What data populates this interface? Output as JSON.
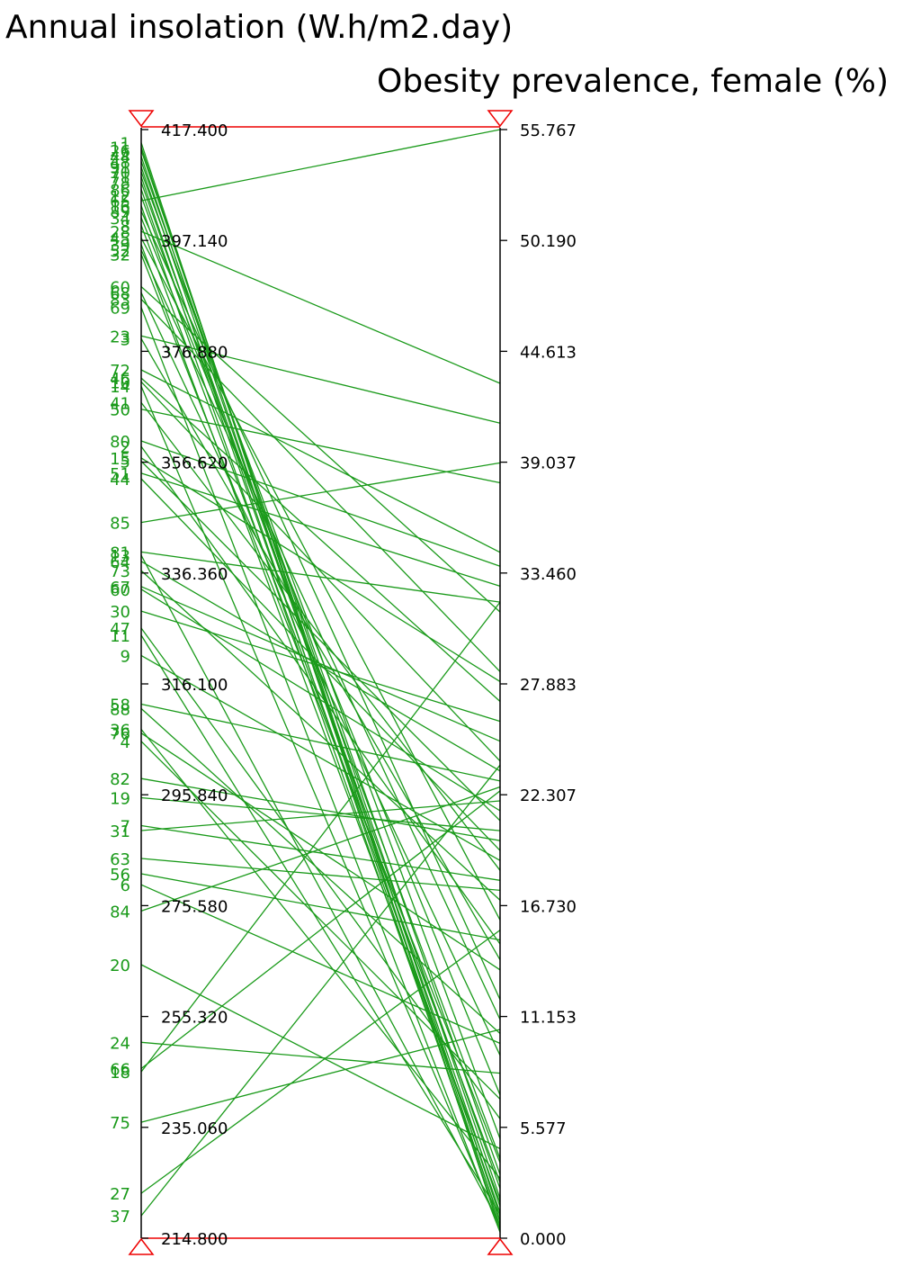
{
  "colors": {
    "line": "#1a9a1a",
    "axis": "#000000",
    "filter_bar": "#ee0000",
    "background": "#ffffff"
  },
  "chart_data": {
    "type": "parallel-coordinates",
    "grid": false,
    "axes": [
      {
        "title": "Annual insolation (W.h/m2.day)",
        "range": [
          214.8,
          417.4
        ],
        "ticks": [
          "417.400",
          "397.140",
          "376.880",
          "356.620",
          "336.360",
          "316.100",
          "295.840",
          "275.580",
          "255.320",
          "235.060",
          "214.800"
        ]
      },
      {
        "title": "Obesity prevalence, female (%)",
        "range": [
          0.0,
          55.767
        ],
        "ticks": [
          "55.767",
          "50.190",
          "44.613",
          "39.037",
          "33.460",
          "27.883",
          "22.307",
          "16.730",
          "11.153",
          "5.577",
          "0.000"
        ]
      }
    ],
    "records": [
      {
        "label": "1",
        "v": [
          415.0,
          0.4
        ]
      },
      {
        "label": "11",
        "v": [
          414.2,
          1.1
        ]
      },
      {
        "label": "26",
        "v": [
          413.6,
          2.0
        ]
      },
      {
        "label": "44",
        "v": [
          412.5,
          0.8
        ]
      },
      {
        "label": "48",
        "v": [
          411.6,
          3.2
        ]
      },
      {
        "label": "91",
        "v": [
          410.6,
          1.6
        ]
      },
      {
        "label": "70",
        "v": [
          409.7,
          5.0
        ]
      },
      {
        "label": "71",
        "v": [
          408.8,
          0.6
        ]
      },
      {
        "label": "78",
        "v": [
          407.8,
          2.5
        ]
      },
      {
        "label": "86",
        "v": [
          406.5,
          1.3
        ]
      },
      {
        "label": "12",
        "v": [
          405.2,
          4.0
        ]
      },
      {
        "label": "65",
        "v": [
          404.4,
          55.767
        ]
      },
      {
        "label": "16",
        "v": [
          403.5,
          0.9
        ]
      },
      {
        "label": "89",
        "v": [
          402.5,
          12.0
        ]
      },
      {
        "label": "34",
        "v": [
          401.3,
          7.2
        ]
      },
      {
        "label": "8",
        "v": [
          399.9,
          2.8
        ]
      },
      {
        "label": "28",
        "v": [
          398.8,
          43.0
        ]
      },
      {
        "label": "45",
        "v": [
          397.6,
          16.0
        ]
      },
      {
        "label": "39",
        "v": [
          396.4,
          1.8
        ]
      },
      {
        "label": "52",
        "v": [
          395.4,
          11.0
        ]
      },
      {
        "label": "32",
        "v": [
          394.6,
          3.8
        ]
      },
      {
        "label": "60",
        "v": [
          388.7,
          31.5
        ]
      },
      {
        "label": "68",
        "v": [
          387.6,
          9.2
        ]
      },
      {
        "label": "83",
        "v": [
          386.4,
          28.5
        ]
      },
      {
        "label": "69",
        "v": [
          384.9,
          0.3
        ]
      },
      {
        "label": "23",
        "v": [
          379.7,
          41.0
        ]
      },
      {
        "label": "3",
        "v": [
          379.2,
          14.0
        ]
      },
      {
        "label": "72",
        "v": [
          373.5,
          34.5
        ]
      },
      {
        "label": "46",
        "v": [
          372.0,
          27.0
        ]
      },
      {
        "label": "10",
        "v": [
          371.3,
          24.0
        ]
      },
      {
        "label": "14",
        "v": [
          370.5,
          0.5
        ]
      },
      {
        "label": "41",
        "v": [
          367.5,
          18.5
        ]
      },
      {
        "label": "50",
        "v": [
          366.3,
          38.0
        ]
      },
      {
        "label": "80",
        "v": [
          360.5,
          33.8
        ]
      },
      {
        "label": "2",
        "v": [
          359.5,
          14.8
        ]
      },
      {
        "label": "15",
        "v": [
          357.4,
          28.0
        ]
      },
      {
        "label": "5",
        "v": [
          356.8,
          21.0
        ]
      },
      {
        "label": "51",
        "v": [
          354.6,
          32.8
        ]
      },
      {
        "label": "44",
        "v": [
          353.6,
          19.5
        ]
      },
      {
        "label": "85",
        "v": [
          345.6,
          39.0
        ]
      },
      {
        "label": "81",
        "v": [
          340.2,
          32.0
        ]
      },
      {
        "label": "13",
        "v": [
          339.6,
          0.7
        ]
      },
      {
        "label": "64",
        "v": [
          338.5,
          23.5
        ]
      },
      {
        "label": "73",
        "v": [
          336.8,
          17.0
        ]
      },
      {
        "label": "67",
        "v": [
          333.9,
          25.0
        ]
      },
      {
        "label": "60",
        "v": [
          333.4,
          21.5
        ]
      },
      {
        "label": "30",
        "v": [
          329.4,
          26.0
        ]
      },
      {
        "label": "47",
        "v": [
          326.3,
          6.0
        ]
      },
      {
        "label": "11",
        "v": [
          325.0,
          1.2
        ]
      },
      {
        "label": "9",
        "v": [
          321.3,
          19.0
        ]
      },
      {
        "label": "58",
        "v": [
          312.4,
          23.0
        ]
      },
      {
        "label": "88",
        "v": [
          311.6,
          10.3
        ]
      },
      {
        "label": "36",
        "v": [
          307.8,
          3.0
        ]
      },
      {
        "label": "76",
        "v": [
          307.1,
          13.5
        ]
      },
      {
        "label": "4",
        "v": [
          305.6,
          7.0
        ]
      },
      {
        "label": "82",
        "v": [
          298.8,
          20.0
        ]
      },
      {
        "label": "19",
        "v": [
          295.3,
          20.5
        ]
      },
      {
        "label": "7",
        "v": [
          290.2,
          18.0
        ]
      },
      {
        "label": "31",
        "v": [
          289.3,
          22.0
        ]
      },
      {
        "label": "63",
        "v": [
          284.2,
          17.5
        ]
      },
      {
        "label": "56",
        "v": [
          281.4,
          15.0
        ]
      },
      {
        "label": "6",
        "v": [
          279.4,
          9.8
        ]
      },
      {
        "label": "84",
        "v": [
          274.6,
          22.7
        ]
      },
      {
        "label": "20",
        "v": [
          264.8,
          4.5
        ]
      },
      {
        "label": "24",
        "v": [
          250.6,
          8.3
        ]
      },
      {
        "label": "66",
        "v": [
          245.8,
          22.5
        ]
      },
      {
        "label": "18",
        "v": [
          245.2,
          32.0
        ]
      },
      {
        "label": "75",
        "v": [
          236.0,
          10.5
        ]
      },
      {
        "label": "27",
        "v": [
          223.0,
          15.5
        ]
      },
      {
        "label": "37",
        "v": [
          218.9,
          23.8
        ]
      }
    ]
  }
}
